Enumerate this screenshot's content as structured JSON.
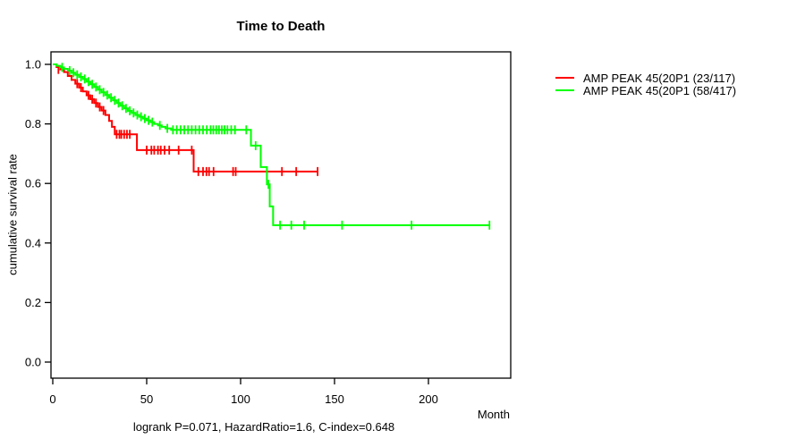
{
  "chart_data": {
    "type": "line",
    "subtype": "kaplan-meier-step",
    "title": "Time to Death",
    "xlabel": "Month",
    "ylabel": "cumulative survival rate",
    "footer": "logrank P=0.071, HazardRatio=1.6, C-index=0.648",
    "xlim": [
      0,
      243
    ],
    "ylim": [
      0.0,
      1.0
    ],
    "xticks": [
      0,
      50,
      100,
      150,
      200
    ],
    "yticks": [
      {
        "v": 0.0,
        "label": "0.0"
      },
      {
        "v": 0.2,
        "label": "0.2"
      },
      {
        "v": 0.4,
        "label": "0.4"
      },
      {
        "v": 0.6,
        "label": "0.6"
      },
      {
        "v": 0.8,
        "label": "0.8"
      },
      {
        "v": 1.0,
        "label": "1.0"
      }
    ],
    "grid": false,
    "legend_position": "right-outside",
    "axis_color": "#000000",
    "series": [
      {
        "name": "AMP PEAK 45(20P1 (23/117)",
        "color": "#ff0000",
        "end_x": 141,
        "steps": [
          [
            0,
            1.0
          ],
          [
            2,
            0.991
          ],
          [
            4,
            0.983
          ],
          [
            6,
            0.974
          ],
          [
            8,
            0.961
          ],
          [
            10,
            0.948
          ],
          [
            12,
            0.935
          ],
          [
            14,
            0.922
          ],
          [
            16,
            0.909
          ],
          [
            18,
            0.896
          ],
          [
            20,
            0.883
          ],
          [
            22,
            0.87
          ],
          [
            24,
            0.857
          ],
          [
            26,
            0.845
          ],
          [
            28,
            0.83
          ],
          [
            30,
            0.81
          ],
          [
            31.5,
            0.79
          ],
          [
            33,
            0.765
          ],
          [
            44.8,
            0.712
          ],
          [
            75,
            0.64
          ]
        ],
        "censors": [
          [
            3,
            0.983
          ],
          [
            13,
            0.935
          ],
          [
            15,
            0.922
          ],
          [
            19,
            0.896
          ],
          [
            21,
            0.883
          ],
          [
            23,
            0.87
          ],
          [
            25,
            0.857
          ],
          [
            27,
            0.845
          ],
          [
            34,
            0.765
          ],
          [
            35.5,
            0.765
          ],
          [
            36.5,
            0.765
          ],
          [
            38,
            0.765
          ],
          [
            39.5,
            0.765
          ],
          [
            41,
            0.765
          ],
          [
            50,
            0.712
          ],
          [
            52.5,
            0.712
          ],
          [
            54,
            0.712
          ],
          [
            56,
            0.712
          ],
          [
            57.5,
            0.712
          ],
          [
            59.5,
            0.712
          ],
          [
            62,
            0.712
          ],
          [
            67,
            0.712
          ],
          [
            74,
            0.712
          ],
          [
            77.5,
            0.64
          ],
          [
            80,
            0.64
          ],
          [
            81.8,
            0.64
          ],
          [
            83.2,
            0.64
          ],
          [
            85.6,
            0.64
          ],
          [
            96,
            0.64
          ],
          [
            97.4,
            0.64
          ],
          [
            122,
            0.64
          ],
          [
            129.6,
            0.64
          ],
          [
            141,
            0.64
          ]
        ]
      },
      {
        "name": "AMP PEAK 45(20P1 (58/417)",
        "color": "#00ff00",
        "end_x": 232.5,
        "steps": [
          [
            0,
            1.0
          ],
          [
            2,
            0.995
          ],
          [
            4,
            0.99
          ],
          [
            6,
            0.985
          ],
          [
            8,
            0.979
          ],
          [
            10,
            0.972
          ],
          [
            12,
            0.965
          ],
          [
            14,
            0.958
          ],
          [
            16,
            0.951
          ],
          [
            18,
            0.942
          ],
          [
            20,
            0.933
          ],
          [
            22,
            0.924
          ],
          [
            24,
            0.915
          ],
          [
            26,
            0.906
          ],
          [
            28,
            0.897
          ],
          [
            30,
            0.888
          ],
          [
            32,
            0.879
          ],
          [
            34,
            0.87
          ],
          [
            36,
            0.861
          ],
          [
            38,
            0.852
          ],
          [
            40,
            0.844
          ],
          [
            42,
            0.837
          ],
          [
            44,
            0.83
          ],
          [
            46,
            0.824
          ],
          [
            48,
            0.818
          ],
          [
            50,
            0.812
          ],
          [
            52,
            0.806
          ],
          [
            54,
            0.8
          ],
          [
            56,
            0.795
          ],
          [
            58,
            0.79
          ],
          [
            60,
            0.785
          ],
          [
            63,
            0.78
          ],
          [
            105.5,
            0.727
          ],
          [
            110.7,
            0.655
          ],
          [
            114,
            0.597
          ],
          [
            115.5,
            0.523
          ],
          [
            117.3,
            0.46
          ]
        ],
        "censors": [
          [
            5,
            0.99
          ],
          [
            9,
            0.979
          ],
          [
            11,
            0.972
          ],
          [
            13,
            0.965
          ],
          [
            15,
            0.958
          ],
          [
            17,
            0.951
          ],
          [
            19,
            0.942
          ],
          [
            21,
            0.933
          ],
          [
            23,
            0.924
          ],
          [
            25,
            0.915
          ],
          [
            27,
            0.906
          ],
          [
            29,
            0.897
          ],
          [
            31,
            0.888
          ],
          [
            33,
            0.879
          ],
          [
            35,
            0.87
          ],
          [
            37,
            0.861
          ],
          [
            39,
            0.852
          ],
          [
            41,
            0.844
          ],
          [
            43,
            0.837
          ],
          [
            45,
            0.83
          ],
          [
            47,
            0.824
          ],
          [
            49,
            0.818
          ],
          [
            51,
            0.812
          ],
          [
            53,
            0.806
          ],
          [
            57,
            0.795
          ],
          [
            61,
            0.785
          ],
          [
            64,
            0.78
          ],
          [
            66,
            0.78
          ],
          [
            68,
            0.78
          ],
          [
            70,
            0.78
          ],
          [
            72,
            0.78
          ],
          [
            74,
            0.78
          ],
          [
            76,
            0.78
          ],
          [
            78,
            0.78
          ],
          [
            80,
            0.78
          ],
          [
            82,
            0.78
          ],
          [
            84,
            0.78
          ],
          [
            85.5,
            0.78
          ],
          [
            87,
            0.78
          ],
          [
            88.5,
            0.78
          ],
          [
            90,
            0.78
          ],
          [
            91.5,
            0.78
          ],
          [
            93,
            0.78
          ],
          [
            95,
            0.78
          ],
          [
            97,
            0.78
          ],
          [
            103,
            0.78
          ],
          [
            108,
            0.727
          ],
          [
            114.8,
            0.597
          ],
          [
            121,
            0.46
          ],
          [
            127,
            0.46
          ],
          [
            133.8,
            0.46
          ],
          [
            154,
            0.46
          ],
          [
            191,
            0.46
          ],
          [
            232.5,
            0.46
          ]
        ]
      }
    ]
  }
}
